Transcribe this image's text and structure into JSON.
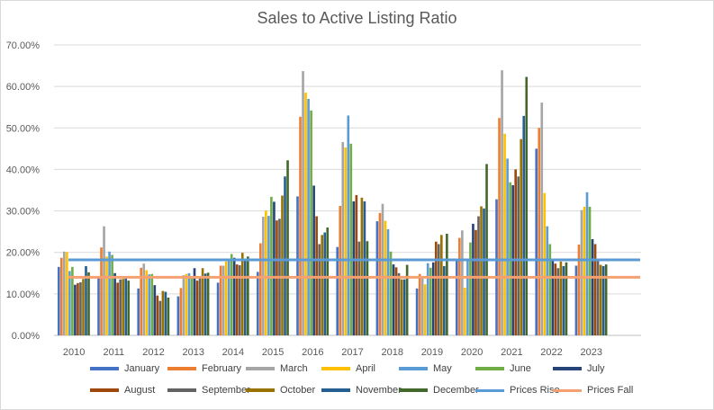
{
  "chart_data": {
    "type": "bar",
    "title": "Sales to Active Listing Ratio",
    "xlabel": "",
    "ylabel": "",
    "ylim": [
      0,
      70
    ],
    "y_ticks": [
      "0.00%",
      "10.00%",
      "20.00%",
      "30.00%",
      "40.00%",
      "50.00%",
      "60.00%",
      "70.00%"
    ],
    "categories": [
      "2010",
      "2011",
      "2012",
      "2013",
      "2014",
      "2015",
      "2016",
      "2017",
      "2018",
      "2019",
      "2020",
      "2021",
      "2022",
      "2023"
    ],
    "grid": true,
    "legend_position": "bottom",
    "series": [
      {
        "name": "January",
        "color": "#4472c4",
        "values": [
          16.5,
          14.2,
          11.3,
          9.4,
          12.7,
          15.3,
          33.5,
          21.3,
          27.5,
          11.3,
          18.5,
          32.8,
          45.0,
          16.8
        ]
      },
      {
        "name": "February",
        "color": "#ed7d31",
        "values": [
          18.7,
          21.2,
          16.3,
          11.4,
          16.8,
          22.2,
          52.7,
          31.2,
          29.5,
          14.8,
          23.5,
          52.4,
          50.0,
          21.9
        ]
      },
      {
        "name": "March",
        "color": "#a5a5a5",
        "values": [
          20.2,
          26.3,
          17.3,
          14.5,
          16.8,
          28.6,
          63.7,
          46.6,
          31.7,
          14.0,
          25.3,
          63.9,
          56.1,
          30.2
        ]
      },
      {
        "name": "April",
        "color": "#ffc000",
        "values": [
          20.1,
          19.0,
          15.7,
          14.8,
          17.8,
          30.1,
          58.5,
          45.3,
          27.6,
          12.3,
          11.5,
          48.6,
          34.3,
          31.0
        ]
      },
      {
        "name": "May",
        "color": "#5b9bd5",
        "values": [
          15.5,
          20.2,
          14.7,
          15.0,
          18.3,
          28.8,
          57.0,
          53.0,
          25.6,
          17.4,
          18.4,
          42.6,
          26.3,
          34.5
        ]
      },
      {
        "name": "June",
        "color": "#70ad47",
        "values": [
          16.5,
          19.4,
          14.8,
          14.3,
          19.6,
          33.4,
          54.2,
          46.2,
          20.2,
          16.3,
          22.4,
          36.9,
          22.0,
          31.0
        ]
      },
      {
        "name": "July",
        "color": "#264478",
        "values": [
          12.2,
          15.0,
          12.1,
          16.2,
          18.7,
          32.2,
          36.1,
          32.3,
          17.1,
          17.6,
          26.9,
          36.2,
          18.4,
          23.2
        ]
      },
      {
        "name": "August",
        "color": "#9e480e",
        "values": [
          12.6,
          12.7,
          9.6,
          13.2,
          17.1,
          27.7,
          28.7,
          33.8,
          16.4,
          22.6,
          25.4,
          40.0,
          17.3,
          22.0
        ]
      },
      {
        "name": "September",
        "color": "#636363",
        "values": [
          12.8,
          13.5,
          8.3,
          14.1,
          16.9,
          28.1,
          22.0,
          22.6,
          15.0,
          22.0,
          28.7,
          38.3,
          16.2,
          18.0
        ]
      },
      {
        "name": "October",
        "color": "#997300",
        "values": [
          13.6,
          13.6,
          10.7,
          16.2,
          19.9,
          33.7,
          24.2,
          33.2,
          13.5,
          24.2,
          31.1,
          47.3,
          17.8,
          17.0
        ]
      },
      {
        "name": "November",
        "color": "#255e91",
        "values": [
          16.7,
          14.2,
          10.5,
          14.9,
          18.2,
          38.3,
          24.8,
          32.3,
          13.5,
          16.7,
          30.6,
          52.9,
          16.7,
          16.7
        ]
      },
      {
        "name": "December",
        "color": "#43682b",
        "values": [
          15.2,
          13.2,
          9.1,
          15.1,
          19.0,
          42.2,
          26.0,
          22.7,
          17.0,
          24.5,
          41.3,
          62.3,
          17.6,
          17.1
        ]
      }
    ],
    "reference_lines": [
      {
        "name": "Prices Rise",
        "color": "#5b9bd5",
        "value": 18.2
      },
      {
        "name": "Prices Fall",
        "color": "#f4a070",
        "value": 14.0
      }
    ]
  }
}
